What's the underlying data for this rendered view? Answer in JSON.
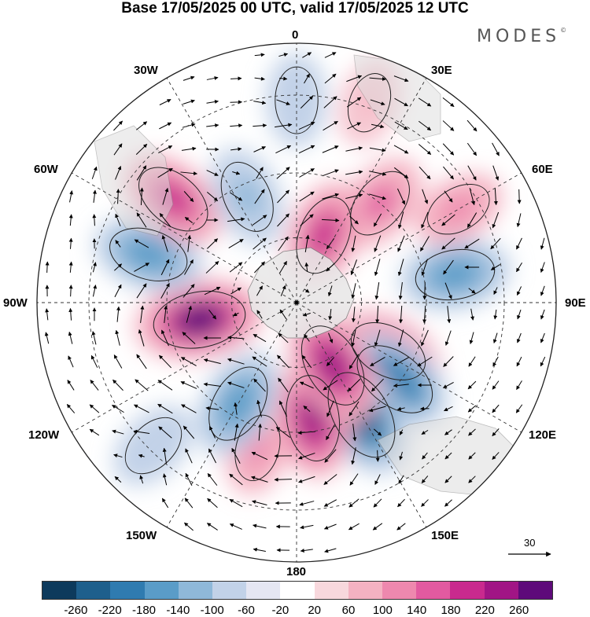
{
  "header": {
    "title": "Base 17/05/2025 00 UTC, valid 17/05/2025 12 UTC",
    "brand": "MODES"
  },
  "longitude_labels": {
    "n0": "0",
    "e30": "30E",
    "e60": "60E",
    "e90": "90E",
    "e120": "120E",
    "e150": "150E",
    "s180": "180",
    "w150": "150W",
    "w120": "120W",
    "w90": "90W",
    "w60": "60W",
    "w30": "30W"
  },
  "vector_reference": {
    "value": "30"
  },
  "colorbar": {
    "colors": [
      "#0d3a5c",
      "#1e5f8c",
      "#2f7bb0",
      "#5a9cc8",
      "#8fb8d9",
      "#c2d2e8",
      "#e5e6f2",
      "#ffffff",
      "#f8d8dd",
      "#f4b2c2",
      "#ee88ae",
      "#e25aa0",
      "#c92a8e",
      "#a11585",
      "#5e0a7a"
    ],
    "ticks": [
      "-260",
      "-220",
      "-180",
      "-140",
      "-100",
      "-60",
      "-20",
      "20",
      "60",
      "100",
      "140",
      "180",
      "220",
      "260"
    ]
  },
  "map": {
    "projection": "south-polar-stereographic",
    "field_blobs": [
      {
        "lon_deg": 0,
        "r_frac": 0.78,
        "value": -100
      },
      {
        "lon_deg": 20,
        "r_frac": 0.82,
        "value": 60
      },
      {
        "lon_deg": 40,
        "r_frac": 0.5,
        "value": 140
      },
      {
        "lon_deg": 80,
        "r_frac": 0.62,
        "value": -180
      },
      {
        "lon_deg": 60,
        "r_frac": 0.72,
        "value": 100
      },
      {
        "lon_deg": 118,
        "r_frac": 0.4,
        "value": 180
      },
      {
        "lon_deg": 128,
        "r_frac": 0.48,
        "value": -220
      },
      {
        "lon_deg": 150,
        "r_frac": 0.5,
        "value": -260
      },
      {
        "lon_deg": 172,
        "r_frac": 0.45,
        "value": 220
      },
      {
        "lon_deg": 195,
        "r_frac": 0.58,
        "value": 100
      },
      {
        "lon_deg": 210,
        "r_frac": 0.45,
        "value": -180
      },
      {
        "lon_deg": 225,
        "r_frac": 0.78,
        "value": -100
      },
      {
        "lon_deg": 260,
        "r_frac": 0.38,
        "value": 260
      },
      {
        "lon_deg": 288,
        "r_frac": 0.6,
        "value": -180
      },
      {
        "lon_deg": 310,
        "r_frac": 0.62,
        "value": 180
      },
      {
        "lon_deg": 335,
        "r_frac": 0.45,
        "value": -140
      },
      {
        "lon_deg": 22,
        "r_frac": 0.28,
        "value": 180
      },
      {
        "lon_deg": 150,
        "r_frac": 0.28,
        "value": 220
      }
    ]
  }
}
